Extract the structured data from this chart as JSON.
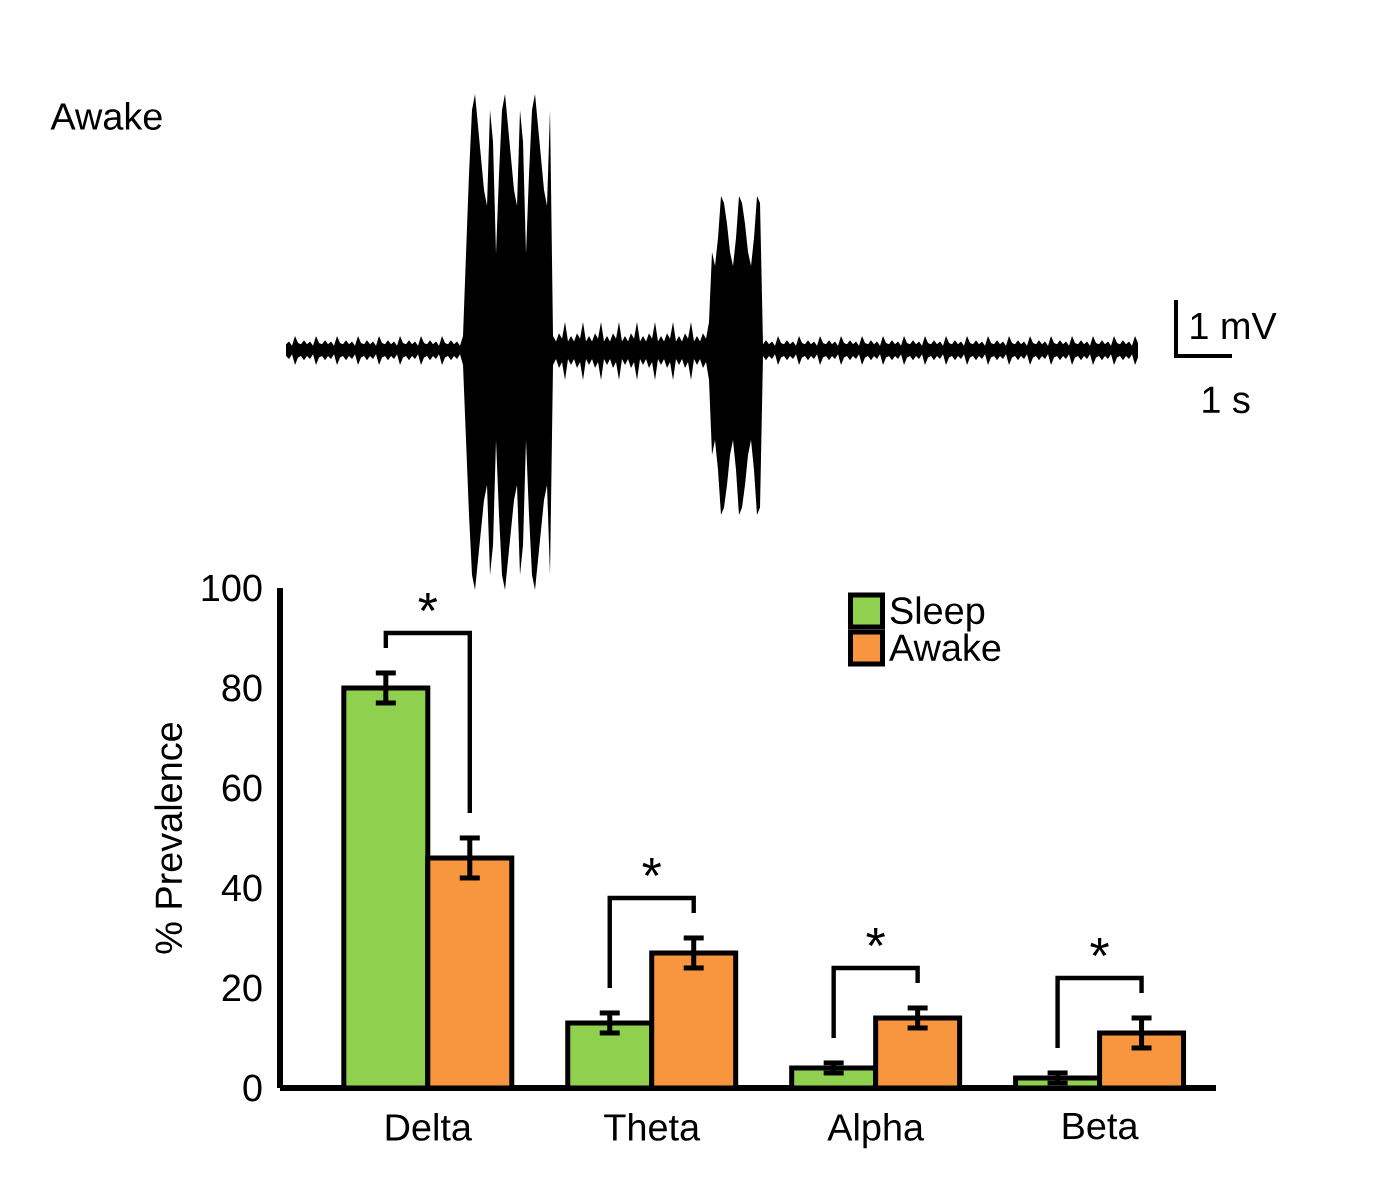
{
  "chart_data": {
    "type": "bar",
    "ylabel": "% Prevalence",
    "categories": [
      "Delta",
      "Theta",
      "Alpha",
      "Beta"
    ],
    "series": [
      {
        "name": "Sleep",
        "color": "#8fd14f",
        "values": [
          80,
          13,
          4,
          2
        ],
        "errors": [
          3,
          2,
          1,
          1
        ]
      },
      {
        "name": "Awake",
        "color": "#f7963f",
        "values": [
          46,
          27,
          14,
          11
        ],
        "errors": [
          4,
          3,
          2,
          3
        ]
      }
    ],
    "ylim": [
      0,
      100
    ],
    "yticks": [
      0,
      20,
      40,
      60,
      80,
      100
    ],
    "legend": "top right",
    "annotations": [
      "Awake",
      "1 mV",
      "1 s",
      "*",
      "*",
      "*",
      "*"
    ]
  }
}
